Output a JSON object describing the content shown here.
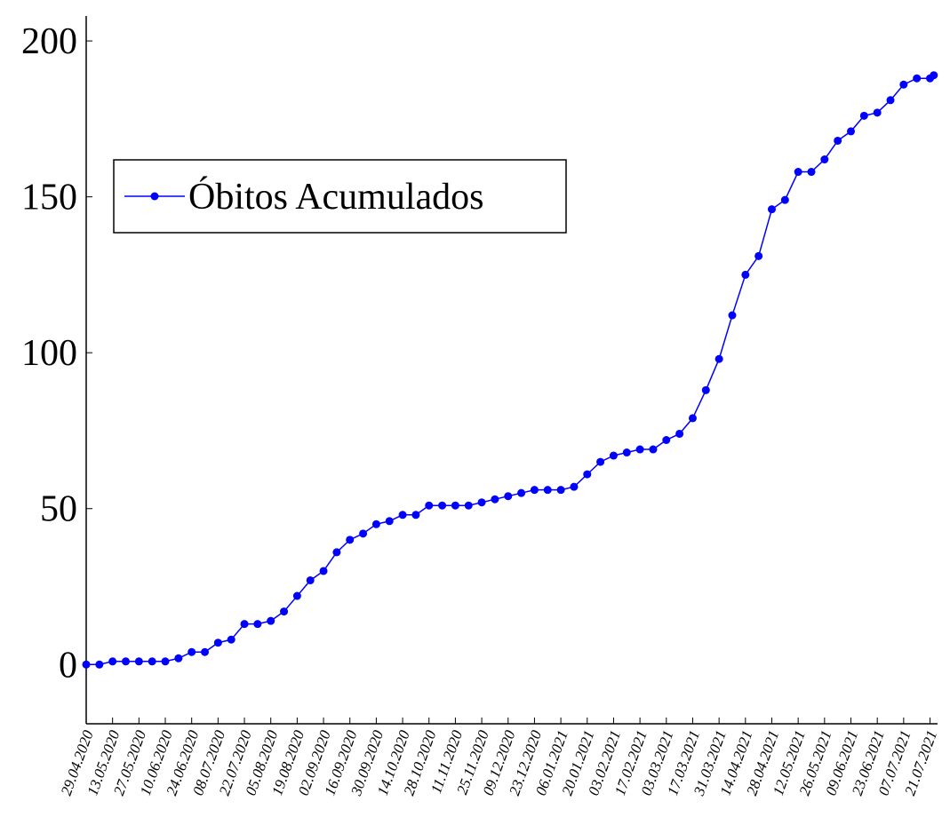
{
  "chart_data": {
    "type": "line",
    "series": [
      {
        "name": "Óbitos Acumulados",
        "color": "#0000ff",
        "x": [
          "29.04.2020",
          "06.05.2020",
          "13.05.2020",
          "20.05.2020",
          "27.05.2020",
          "03.06.2020",
          "10.06.2020",
          "17.06.2020",
          "24.06.2020",
          "01.07.2020",
          "08.07.2020",
          "15.07.2020",
          "22.07.2020",
          "29.07.2020",
          "05.08.2020",
          "12.08.2020",
          "19.08.2020",
          "26.08.2020",
          "02.09.2020",
          "09.09.2020",
          "16.09.2020",
          "23.09.2020",
          "30.09.2020",
          "07.10.2020",
          "14.10.2020",
          "21.10.2020",
          "28.10.2020",
          "04.11.2020",
          "11.11.2020",
          "18.11.2020",
          "25.11.2020",
          "02.12.2020",
          "09.12.2020",
          "16.12.2020",
          "23.12.2020",
          "30.12.2020",
          "06.01.2021",
          "13.01.2021",
          "20.01.2021",
          "27.01.2021",
          "03.02.2021",
          "10.02.2021",
          "17.02.2021",
          "24.02.2021",
          "03.03.2021",
          "10.03.2021",
          "17.03.2021",
          "24.03.2021",
          "31.03.2021",
          "07.04.2021",
          "14.04.2021",
          "21.04.2021",
          "28.04.2021",
          "05.05.2021",
          "12.05.2021",
          "19.05.2021",
          "26.05.2021",
          "02.06.2021",
          "09.06.2021",
          "16.06.2021",
          "23.06.2021",
          "30.06.2021",
          "07.07.2021",
          "14.07.2021",
          "21.07.2021",
          "23.07.2021"
        ],
        "values": [
          0,
          0,
          1,
          1,
          1,
          1,
          1,
          2,
          4,
          4,
          7,
          8,
          13,
          13,
          14,
          17,
          22,
          27,
          30,
          36,
          40,
          42,
          45,
          46,
          48,
          48,
          51,
          51,
          51,
          51,
          52,
          53,
          54,
          55,
          56,
          56,
          56,
          57,
          61,
          65,
          67,
          68,
          69,
          69,
          72,
          74,
          79,
          88,
          98,
          112,
          125,
          131,
          146,
          149,
          158,
          158,
          162,
          168,
          171,
          176,
          177,
          181,
          186,
          188,
          188,
          189
        ]
      }
    ],
    "xlim": [
      "29.04.2020",
      "25.07.2021"
    ],
    "xticks": [
      "29.04.2020",
      "13.05.2020",
      "27.05.2020",
      "10.06.2020",
      "24.06.2020",
      "08.07.2020",
      "22.07.2020",
      "05.08.2020",
      "19.08.2020",
      "02.09.2020",
      "16.09.2020",
      "30.09.2020",
      "14.10.2020",
      "28.10.2020",
      "11.11.2020",
      "25.11.2020",
      "09.12.2020",
      "23.12.2020",
      "06.01.2021",
      "20.01.2021",
      "03.02.2021",
      "17.02.2021",
      "03.03.2021",
      "17.03.2021",
      "31.03.2021",
      "14.04.2021",
      "28.04.2021",
      "12.05.2021",
      "26.05.2021",
      "09.06.2021",
      "23.06.2021",
      "07.07.2021",
      "21.07.2021"
    ],
    "ylim": [
      -19,
      208
    ],
    "yticks": [
      0,
      50,
      100,
      150,
      200
    ],
    "grid": false,
    "legend": "upper left"
  }
}
